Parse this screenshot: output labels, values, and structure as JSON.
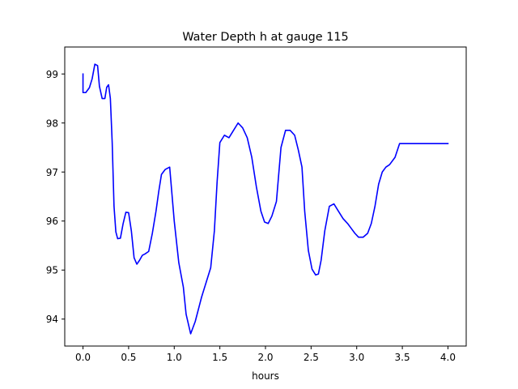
{
  "chart_data": {
    "type": "line",
    "title": "Water Depth h at gauge 115",
    "xlabel": "hours",
    "ylabel": "",
    "xlim": [
      -0.2,
      4.2
    ],
    "ylim": [
      93.45,
      99.55
    ],
    "xticks": [
      0.0,
      0.5,
      1.0,
      1.5,
      2.0,
      2.5,
      3.0,
      3.5,
      4.0
    ],
    "xtick_labels": [
      "0.0",
      "0.5",
      "1.0",
      "1.5",
      "2.0",
      "2.5",
      "3.0",
      "3.5",
      "4.0"
    ],
    "yticks": [
      94,
      95,
      96,
      97,
      98,
      99
    ],
    "ytick_labels": [
      "94",
      "95",
      "96",
      "97",
      "98",
      "99"
    ],
    "grid": false,
    "colors": {
      "series": "#0000ff",
      "axes": "#000000",
      "background": "#ffffff"
    },
    "series": [
      {
        "name": "",
        "x": [
          0.0,
          0.0,
          0.03,
          0.07,
          0.1,
          0.13,
          0.16,
          0.18,
          0.21,
          0.24,
          0.26,
          0.28,
          0.3,
          0.32,
          0.34,
          0.36,
          0.38,
          0.41,
          0.44,
          0.47,
          0.5,
          0.53,
          0.56,
          0.59,
          0.62,
          0.65,
          0.68,
          0.72,
          0.76,
          0.8,
          0.83,
          0.86,
          0.9,
          0.95,
          1.0,
          1.05,
          1.1,
          1.13,
          1.18,
          1.23,
          1.3,
          1.35,
          1.4,
          1.44,
          1.47,
          1.5,
          1.55,
          1.6,
          1.65,
          1.7,
          1.75,
          1.8,
          1.85,
          1.9,
          1.95,
          1.99,
          2.03,
          2.07,
          2.12,
          2.17,
          2.22,
          2.27,
          2.32,
          2.36,
          2.4,
          2.43,
          2.47,
          2.51,
          2.55,
          2.58,
          2.61,
          2.65,
          2.7,
          2.75,
          2.8,
          2.85,
          2.9,
          2.94,
          2.98,
          3.02,
          3.07,
          3.12,
          3.16,
          3.2,
          3.24,
          3.28,
          3.32,
          3.36,
          3.42,
          3.47,
          3.52,
          3.57,
          3.62,
          3.67,
          3.72,
          3.77,
          3.81,
          3.85,
          3.9,
          3.94,
          3.97,
          4.0
        ],
        "y": [
          99.0,
          98.62,
          98.62,
          98.72,
          98.9,
          99.2,
          99.17,
          98.75,
          98.5,
          98.5,
          98.73,
          98.78,
          98.5,
          97.6,
          96.3,
          95.78,
          95.64,
          95.65,
          95.95,
          96.18,
          96.17,
          95.8,
          95.25,
          95.12,
          95.2,
          95.3,
          95.33,
          95.38,
          95.75,
          96.2,
          96.6,
          96.95,
          97.05,
          97.1,
          96.0,
          95.15,
          94.65,
          94.1,
          93.7,
          93.95,
          94.45,
          94.75,
          95.05,
          95.8,
          96.8,
          97.6,
          97.75,
          97.7,
          97.85,
          98.0,
          97.9,
          97.7,
          97.3,
          96.7,
          96.2,
          95.98,
          95.95,
          96.1,
          96.4,
          97.5,
          97.85,
          97.85,
          97.75,
          97.45,
          97.1,
          96.2,
          95.4,
          95.02,
          94.9,
          94.92,
          95.2,
          95.8,
          96.3,
          96.35,
          96.2,
          96.05,
          95.95,
          95.85,
          95.75,
          95.67,
          95.67,
          95.75,
          95.95,
          96.3,
          96.75,
          97.0,
          97.1,
          97.15,
          97.3,
          97.58,
          97.58,
          97.58,
          97.58,
          97.58,
          97.58,
          97.58,
          97.58,
          97.58,
          97.58,
          97.58,
          97.58,
          97.58
        ]
      }
    ]
  }
}
